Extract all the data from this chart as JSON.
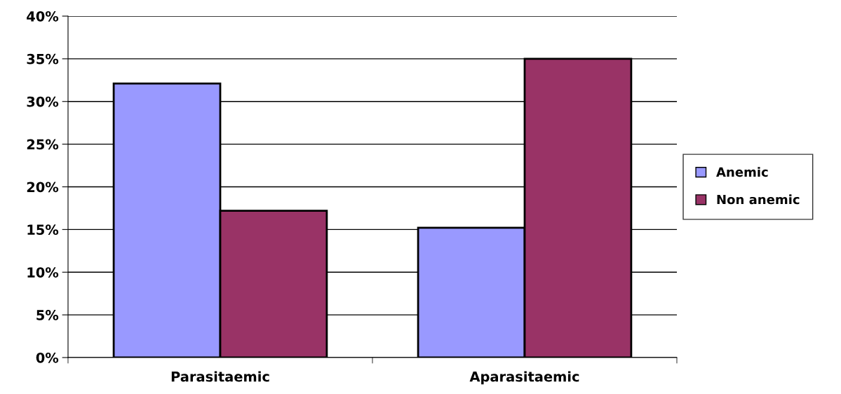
{
  "chart_data": {
    "type": "bar",
    "categories": [
      "Parasitaemic",
      "Aparasitaemic"
    ],
    "series": [
      {
        "name": "Anemic",
        "color": "#9999ff",
        "values": [
          0.321,
          0.152
        ]
      },
      {
        "name": "Non anemic",
        "color": "#993366",
        "values": [
          0.172,
          0.35
        ]
      }
    ],
    "ylim": [
      0,
      0.4
    ],
    "yticks": [
      {
        "value": 0,
        "label": "0%"
      },
      {
        "value": 0.05,
        "label": "5%"
      },
      {
        "value": 0.1,
        "label": "10%"
      },
      {
        "value": 0.15,
        "label": "15%"
      },
      {
        "value": 0.2,
        "label": "20%"
      },
      {
        "value": 0.25,
        "label": "25%"
      },
      {
        "value": 0.3,
        "label": "30%"
      },
      {
        "value": 0.35,
        "label": "35%"
      },
      {
        "value": 0.4,
        "label": "40%"
      }
    ],
    "grid": "y",
    "legend": "right"
  }
}
